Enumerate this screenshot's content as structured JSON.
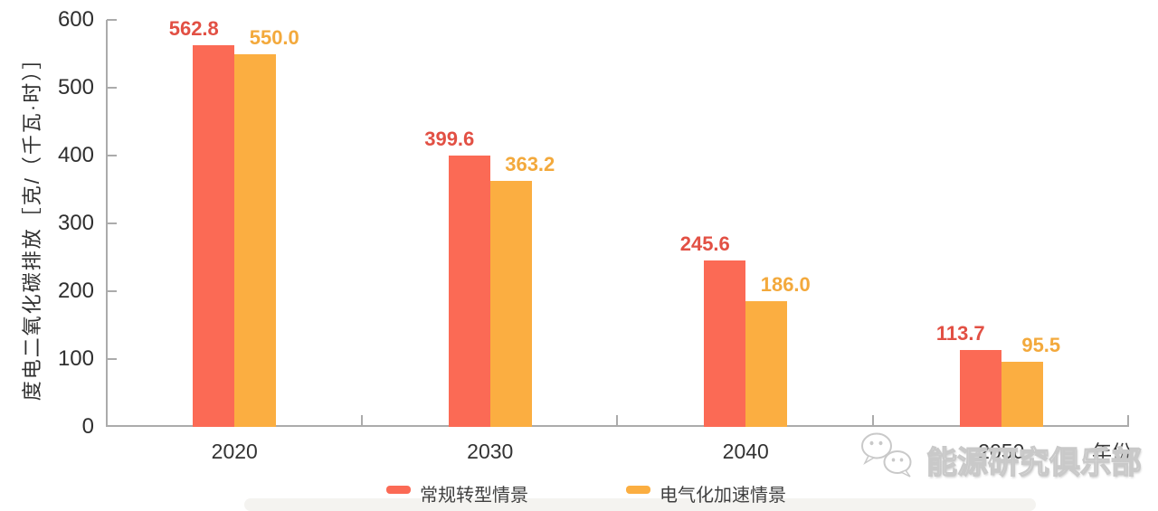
{
  "chart_data": {
    "type": "bar",
    "title": "",
    "categories": [
      "2020",
      "2030",
      "2040",
      "2050"
    ],
    "series": [
      {
        "name": "常规转型情景",
        "color": "#FB6A55",
        "label_color": "#E25044",
        "values": [
          562.8,
          399.6,
          245.6,
          113.7
        ],
        "value_labels": [
          "562.8",
          "399.6",
          "245.6",
          "113.7"
        ]
      },
      {
        "name": "电气化加速情景",
        "color": "#FBAE41",
        "label_color": "#F3A93C",
        "values": [
          550.0,
          363.2,
          186.0,
          95.5
        ],
        "value_labels": [
          "550.0",
          "363.2",
          "186.0",
          "95.5"
        ]
      }
    ],
    "ylabel": "度电二氧化碳排放［克/（千瓦·时）］",
    "xlabel": "年份",
    "ylim": [
      0,
      600
    ],
    "y_ticks": [
      0,
      100,
      200,
      300,
      400,
      500,
      600
    ],
    "grid": false,
    "legend_position": "bottom"
  },
  "watermark": {
    "text": "能源研究俱乐部",
    "icon": "wechat-chat-bubbles-icon"
  }
}
